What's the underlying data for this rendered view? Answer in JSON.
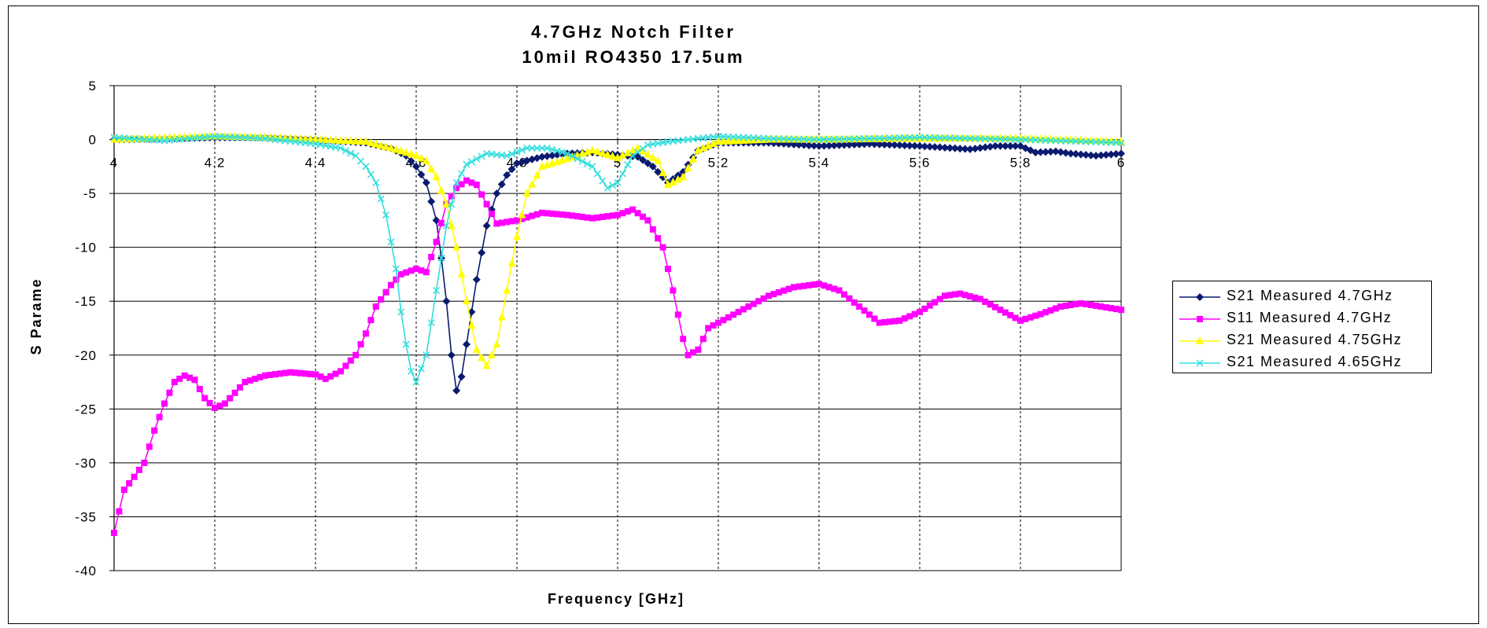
{
  "chart_data": {
    "type": "line",
    "title": "4.7GHz Notch Filter",
    "subtitle": "10mil RO4350 17.5um",
    "xlabel": "Frequency [GHz]",
    "ylabel": "S Parame",
    "xlim": [
      4,
      6
    ],
    "ylim": [
      -40,
      5
    ],
    "x_ticks": [
      4,
      4.2,
      4.4,
      4.6,
      4.8,
      5,
      5.2,
      5.4,
      5.6,
      5.8,
      6
    ],
    "x_tick_labels": [
      "4",
      "4.2",
      "4.4",
      "4.6",
      "4.8",
      "5",
      "5.2",
      "5.4",
      "5.6",
      "5.8",
      "6"
    ],
    "y_ticks": [
      5,
      0,
      -5,
      -10,
      -15,
      -20,
      -25,
      -30,
      -35,
      -40
    ],
    "y_tick_labels": [
      "5",
      "0",
      "-5",
      "-10",
      "-15",
      "-20",
      "-25",
      "-30",
      "-35",
      "-40"
    ],
    "x_axis_crosses_at": 0,
    "grid": "vertical dashed, horizontal solid",
    "legend_position": "right",
    "series": [
      {
        "name": "S21 Measured 4.7GHz",
        "color": "#0a1a6e",
        "marker": "diamond",
        "points": [
          [
            4.0,
            0.0
          ],
          [
            4.1,
            0.1
          ],
          [
            4.2,
            0.2
          ],
          [
            4.3,
            0.2
          ],
          [
            4.4,
            0.0
          ],
          [
            4.5,
            -0.3
          ],
          [
            4.55,
            -0.8
          ],
          [
            4.58,
            -1.5
          ],
          [
            4.6,
            -2.5
          ],
          [
            4.62,
            -4.0
          ],
          [
            4.64,
            -7.5
          ],
          [
            4.65,
            -11.0
          ],
          [
            4.66,
            -15.0
          ],
          [
            4.67,
            -20.0
          ],
          [
            4.68,
            -23.3
          ],
          [
            4.69,
            -22.0
          ],
          [
            4.7,
            -19.0
          ],
          [
            4.72,
            -13.0
          ],
          [
            4.74,
            -8.0
          ],
          [
            4.76,
            -5.0
          ],
          [
            4.78,
            -3.3
          ],
          [
            4.8,
            -2.2
          ],
          [
            4.85,
            -1.6
          ],
          [
            4.9,
            -1.3
          ],
          [
            4.95,
            -1.2
          ],
          [
            5.0,
            -1.4
          ],
          [
            5.04,
            -1.6
          ],
          [
            5.07,
            -2.5
          ],
          [
            5.1,
            -4.0
          ],
          [
            5.13,
            -3.0
          ],
          [
            5.16,
            -1.0
          ],
          [
            5.2,
            -0.3
          ],
          [
            5.3,
            -0.3
          ],
          [
            5.4,
            -0.6
          ],
          [
            5.5,
            -0.4
          ],
          [
            5.6,
            -0.6
          ],
          [
            5.7,
            -0.9
          ],
          [
            5.75,
            -0.6
          ],
          [
            5.8,
            -0.6
          ],
          [
            5.83,
            -1.2
          ],
          [
            5.87,
            -1.1
          ],
          [
            5.9,
            -1.3
          ],
          [
            5.95,
            -1.5
          ],
          [
            6.0,
            -1.3
          ]
        ]
      },
      {
        "name": "S11 Measured 4.7GHz",
        "color": "#ff00ff",
        "marker": "square",
        "points": [
          [
            4.0,
            -36.5
          ],
          [
            4.02,
            -32.5
          ],
          [
            4.04,
            -31.3
          ],
          [
            4.06,
            -30.0
          ],
          [
            4.08,
            -27.0
          ],
          [
            4.1,
            -24.5
          ],
          [
            4.12,
            -22.5
          ],
          [
            4.14,
            -21.9
          ],
          [
            4.16,
            -22.3
          ],
          [
            4.18,
            -24.0
          ],
          [
            4.2,
            -24.9
          ],
          [
            4.22,
            -24.5
          ],
          [
            4.24,
            -23.5
          ],
          [
            4.26,
            -22.5
          ],
          [
            4.3,
            -21.9
          ],
          [
            4.35,
            -21.6
          ],
          [
            4.4,
            -21.8
          ],
          [
            4.42,
            -22.2
          ],
          [
            4.45,
            -21.5
          ],
          [
            4.48,
            -20.0
          ],
          [
            4.5,
            -18.0
          ],
          [
            4.52,
            -15.5
          ],
          [
            4.55,
            -13.5
          ],
          [
            4.57,
            -12.5
          ],
          [
            4.6,
            -12.0
          ],
          [
            4.62,
            -12.3
          ],
          [
            4.64,
            -9.5
          ],
          [
            4.66,
            -6.0
          ],
          [
            4.68,
            -4.5
          ],
          [
            4.7,
            -3.8
          ],
          [
            4.72,
            -4.2
          ],
          [
            4.74,
            -6.0
          ],
          [
            4.76,
            -7.8
          ],
          [
            4.8,
            -7.5
          ],
          [
            4.85,
            -6.8
          ],
          [
            4.9,
            -7.0
          ],
          [
            4.95,
            -7.3
          ],
          [
            5.0,
            -7.0
          ],
          [
            5.03,
            -6.5
          ],
          [
            5.06,
            -7.5
          ],
          [
            5.09,
            -10.0
          ],
          [
            5.11,
            -14.0
          ],
          [
            5.13,
            -18.5
          ],
          [
            5.14,
            -20.0
          ],
          [
            5.16,
            -19.5
          ],
          [
            5.18,
            -17.5
          ],
          [
            5.22,
            -16.5
          ],
          [
            5.26,
            -15.5
          ],
          [
            5.3,
            -14.5
          ],
          [
            5.35,
            -13.7
          ],
          [
            5.4,
            -13.4
          ],
          [
            5.44,
            -14.0
          ],
          [
            5.48,
            -15.5
          ],
          [
            5.52,
            -17.0
          ],
          [
            5.56,
            -16.8
          ],
          [
            5.6,
            -16.0
          ],
          [
            5.65,
            -14.5
          ],
          [
            5.68,
            -14.3
          ],
          [
            5.72,
            -14.8
          ],
          [
            5.76,
            -15.8
          ],
          [
            5.8,
            -16.8
          ],
          [
            5.84,
            -16.2
          ],
          [
            5.88,
            -15.5
          ],
          [
            5.92,
            -15.2
          ],
          [
            5.96,
            -15.5
          ],
          [
            6.0,
            -15.8
          ]
        ]
      },
      {
        "name": "S21 Measured 4.75GHz",
        "color": "#ffff00",
        "marker": "triangle",
        "points": [
          [
            4.0,
            0.0
          ],
          [
            4.2,
            0.3
          ],
          [
            4.3,
            0.2
          ],
          [
            4.4,
            0.0
          ],
          [
            4.5,
            -0.2
          ],
          [
            4.55,
            -0.8
          ],
          [
            4.6,
            -1.5
          ],
          [
            4.62,
            -2.0
          ],
          [
            4.64,
            -3.5
          ],
          [
            4.66,
            -6.0
          ],
          [
            4.68,
            -10.0
          ],
          [
            4.7,
            -15.0
          ],
          [
            4.72,
            -19.5
          ],
          [
            4.74,
            -21.0
          ],
          [
            4.76,
            -19.0
          ],
          [
            4.78,
            -14.0
          ],
          [
            4.8,
            -9.0
          ],
          [
            4.82,
            -5.0
          ],
          [
            4.85,
            -2.5
          ],
          [
            4.9,
            -1.8
          ],
          [
            4.95,
            -1.0
          ],
          [
            5.0,
            -1.7
          ],
          [
            5.04,
            -0.8
          ],
          [
            5.08,
            -2.0
          ],
          [
            5.1,
            -4.2
          ],
          [
            5.13,
            -3.5
          ],
          [
            5.16,
            -1.0
          ],
          [
            5.2,
            -0.2
          ],
          [
            5.3,
            0.0
          ],
          [
            5.4,
            0.0
          ],
          [
            5.6,
            0.1
          ],
          [
            5.8,
            0.1
          ],
          [
            6.0,
            -0.2
          ]
        ]
      },
      {
        "name": "S21 Measured 4.65GHz",
        "color": "#33dddd",
        "marker": "x",
        "points": [
          [
            4.0,
            0.2
          ],
          [
            4.1,
            -0.1
          ],
          [
            4.2,
            0.3
          ],
          [
            4.3,
            0.1
          ],
          [
            4.4,
            -0.4
          ],
          [
            4.45,
            -0.8
          ],
          [
            4.48,
            -1.5
          ],
          [
            4.5,
            -2.5
          ],
          [
            4.52,
            -4.0
          ],
          [
            4.54,
            -7.0
          ],
          [
            4.56,
            -12.0
          ],
          [
            4.57,
            -16.0
          ],
          [
            4.58,
            -19.0
          ],
          [
            4.59,
            -21.5
          ],
          [
            4.6,
            -22.5
          ],
          [
            4.62,
            -20.0
          ],
          [
            4.64,
            -14.0
          ],
          [
            4.66,
            -8.0
          ],
          [
            4.68,
            -4.0
          ],
          [
            4.7,
            -2.3
          ],
          [
            4.74,
            -1.3
          ],
          [
            4.78,
            -1.5
          ],
          [
            4.82,
            -0.8
          ],
          [
            4.86,
            -0.8
          ],
          [
            4.9,
            -1.3
          ],
          [
            4.95,
            -2.5
          ],
          [
            4.98,
            -4.5
          ],
          [
            5.0,
            -4.0
          ],
          [
            5.03,
            -1.5
          ],
          [
            5.06,
            -0.5
          ],
          [
            5.1,
            -0.2
          ],
          [
            5.2,
            0.3
          ],
          [
            5.3,
            0.1
          ],
          [
            5.4,
            0.0
          ],
          [
            5.6,
            0.2
          ],
          [
            5.8,
            0.0
          ],
          [
            6.0,
            -0.3
          ]
        ]
      }
    ]
  }
}
